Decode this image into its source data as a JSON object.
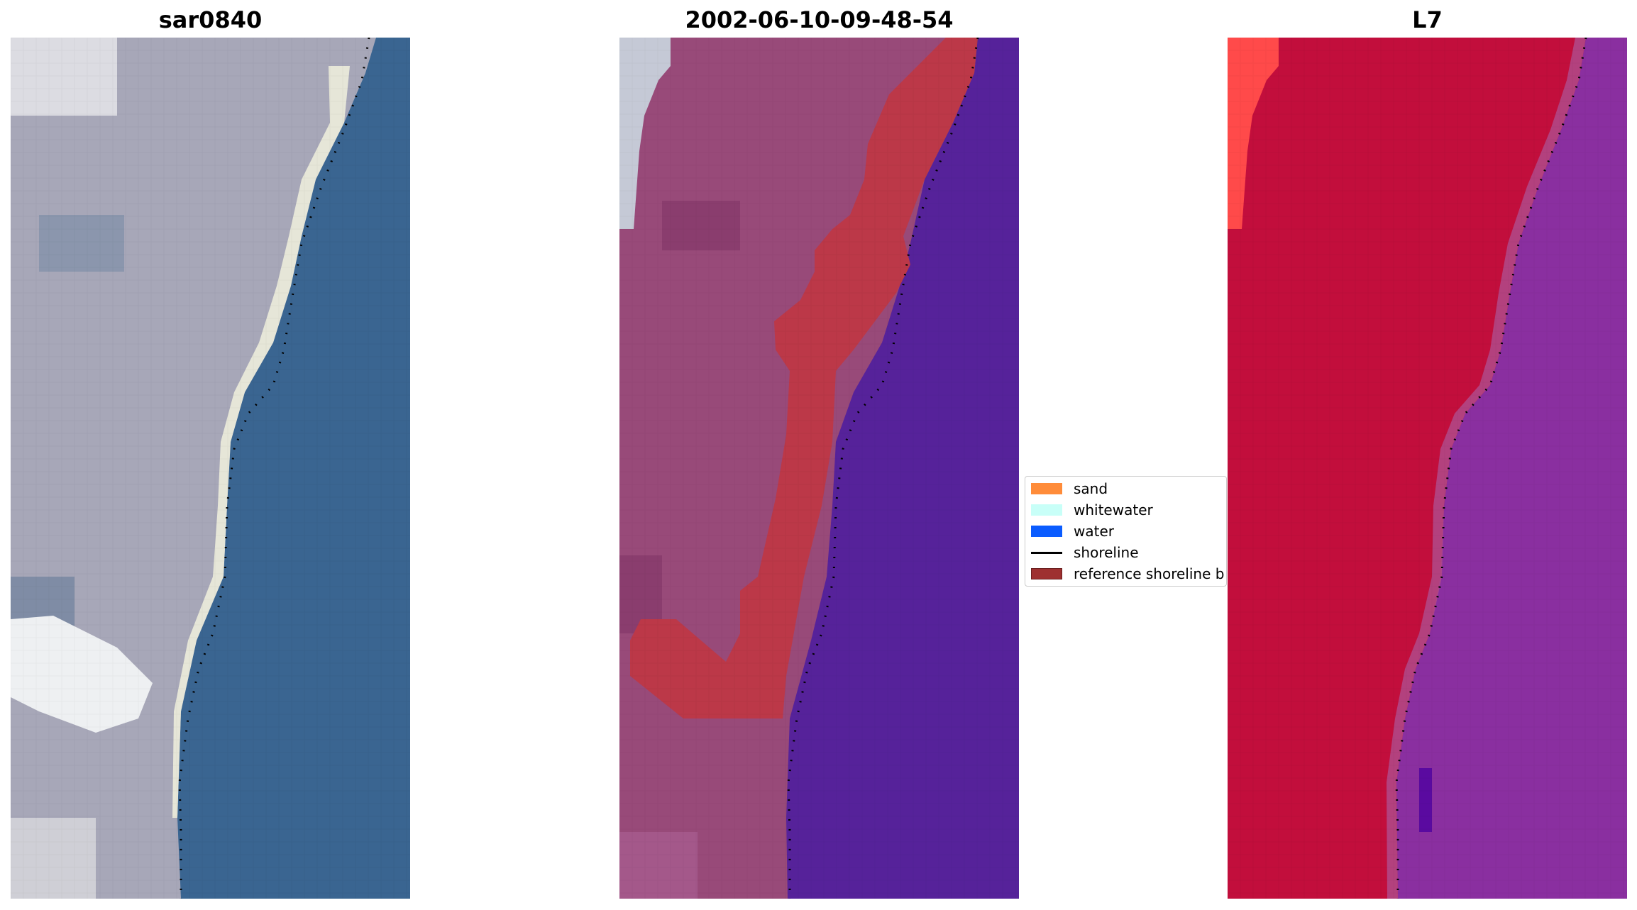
{
  "panels": [
    {
      "title": "sar0840"
    },
    {
      "title": "2002-06-10-09-48-54"
    },
    {
      "title": "L7"
    }
  ],
  "legend": {
    "items": [
      {
        "label": "sand",
        "color": "#ff8c3a",
        "kind": "patch"
      },
      {
        "label": "whitewater",
        "color": "#c8fff8",
        "kind": "patch"
      },
      {
        "label": "water",
        "color": "#0a5cff",
        "kind": "patch"
      },
      {
        "label": "shoreline",
        "color": "#000000",
        "kind": "line"
      },
      {
        "label": "reference shoreline b",
        "color": "#9e3030",
        "kind": "patch"
      }
    ]
  },
  "colors": {
    "rgb_land": "#a7a7b8",
    "rgb_water": "#3a6591",
    "rgb_beach": "#e6e6d8",
    "cls_land": "#984a79",
    "cls_water": "#56229a",
    "cls_buffer": "#bc3848",
    "fc_land": "#c20e3c",
    "fc_water": "#8a2fa0",
    "fc_bright": "#ff4a4a",
    "shoreline_dots": "#000000"
  }
}
